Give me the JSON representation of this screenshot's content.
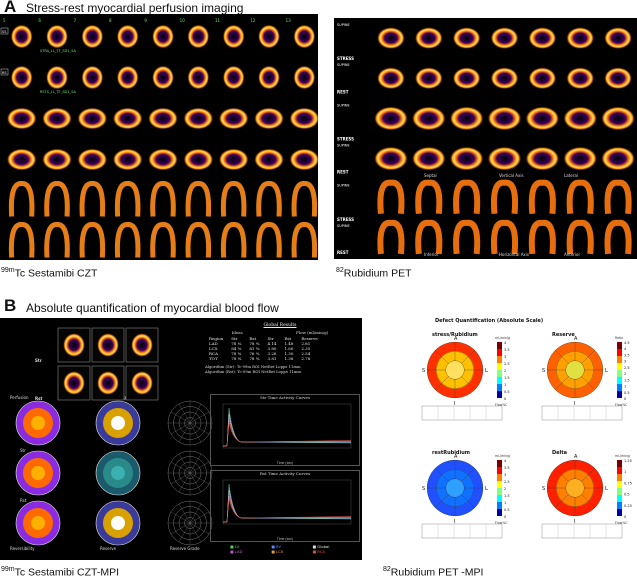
{
  "panel_a": {
    "letter": "A",
    "title": "Stress-rest myocardial perfusion imaging",
    "left_caption_super": "99m",
    "left_caption_rest": "Tc Sestamibi CZT",
    "right_caption_super": "82",
    "right_caption_rest": "Rubidium PET",
    "czt_side_labels": [
      "SS",
      "RS"
    ],
    "czt_top_numbers": [
      "5",
      "6",
      "7",
      "8",
      "9",
      "10",
      "11",
      "12",
      "13"
    ],
    "czt_series_labels": [
      "STRA_LL_TF_SD1_SA",
      "RSTS_LL_TF_SD1_SA"
    ],
    "pet_stress_label": "STRESS",
    "pet_rest_label": "REST",
    "pet_axis_labels": [
      "Septal",
      "Vertical Axis",
      "Lateral",
      "Inferior",
      "Horizontal Axis",
      "Anterior"
    ],
    "pet_supine": "SUPINE"
  },
  "panel_b": {
    "letter": "B",
    "title": "Absolute quantification of myocardial blood flow",
    "left_caption_super": "99m",
    "left_caption_rest": "Tc Sestamibi CZT-MPI",
    "right_caption_super": "82",
    "right_caption_rest": "Rubidium  PET -MPI",
    "side_labels": [
      "Str",
      "Rst"
    ],
    "polar_labels": [
      "Perfusion",
      "Flow (ml/min/g)",
      "Str",
      "Rst",
      "Reversibility",
      "Reserve",
      "Reserve Grade"
    ],
    "global_results": {
      "title": "Global Results",
      "col_heads": [
        "Region",
        "Str",
        "Rst",
        "Str",
        "Rst",
        "Reserve"
      ],
      "group_heads": [
        "Ideas",
        "Flow (ml/min/g)"
      ],
      "rows": [
        [
          "LAD",
          "78 %",
          "78 %",
          "4.14",
          "1.48",
          "2.81"
        ],
        [
          "LCX",
          "84 %",
          "81 %",
          "3.80",
          "1.60",
          "2.35"
        ],
        [
          "RCA",
          "78 %",
          "76 %",
          "3.28",
          "1.30",
          "2.54"
        ],
        [
          "TOT",
          "78 %",
          "78 %",
          "3.81",
          "1.38",
          "2.78"
        ]
      ],
      "algorithm_lines": [
        "Algorithm (Str):  Tc-99m ROI NetRet Lopps 11mm",
        "Algorithm (Rst):  Tc-99m ROI NetRet Lopps 11mm"
      ]
    },
    "curve_titles": [
      "Str Time Activity Curves",
      "Rst Time Activity Curves"
    ],
    "curve_xlabel": "Time (sec)",
    "legend_items": [
      "LV",
      "RV",
      "Global",
      "LAD",
      "LCX",
      "RCA"
    ],
    "legend_colors": [
      "#5bd05b",
      "#5b8cff",
      "#e0e0e0",
      "#c05bd0",
      "#e0a040",
      "#e05050"
    ],
    "defect_title": "Defect Quantification (Absolute Scale)",
    "pet_maps": [
      {
        "title": "stress/Rubidium",
        "unit": "mL/min/g",
        "scale": [
          "4",
          "3.5",
          "3",
          "2.5",
          "2",
          "1.5",
          "1",
          "0.5",
          "0"
        ]
      },
      {
        "title": "Reserve",
        "unit": "Ratio",
        "scale": [
          "4.5",
          "4",
          "3.5",
          "3",
          "2.5",
          "2",
          "1.5",
          "1",
          "0.5",
          "0"
        ]
      },
      {
        "title": "restRubidium",
        "unit": "mL/min/g",
        "scale": [
          "4",
          "3.5",
          "3",
          "2.5",
          "2",
          "1.5",
          "1",
          "0.5",
          "0"
        ]
      },
      {
        "title": "Delta",
        "unit": "mL/min/g",
        "scale": [
          "1.25",
          "1",
          "0.75",
          "0.5",
          "0.25",
          "0"
        ]
      }
    ],
    "pet_polar_letters": [
      "A",
      "S",
      "L",
      "I"
    ],
    "pet_flowpc": "Flow%C"
  },
  "colors": {
    "image_bg": "#000000",
    "czt_green_label": "#6ee66e",
    "heat_hot": "#ffffff",
    "heat_mid": "#ff7a00",
    "heat_low": "#7a0090"
  }
}
